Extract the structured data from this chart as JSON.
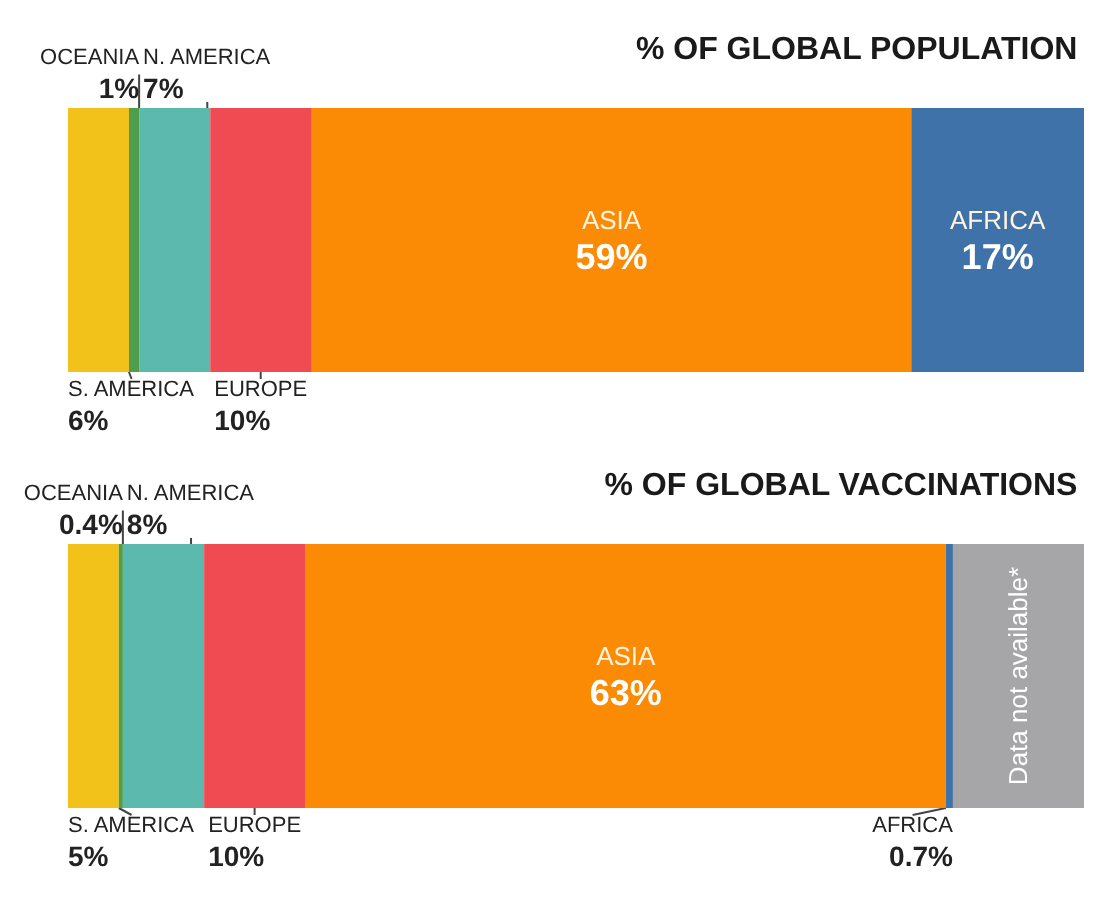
{
  "chart_data": [
    {
      "type": "bar",
      "title": "% OF GLOBAL POPULATION",
      "orientation": "horizontal",
      "stacked": true,
      "categories": [
        null
      ],
      "series": [
        {
          "name": "S. AMERICA",
          "color": "#f2c21b",
          "values": [
            6
          ],
          "value_labels": [
            "6%"
          ]
        },
        {
          "name": "OCEANIA",
          "color": "#4f9e4c",
          "values": [
            1
          ],
          "value_labels": [
            "1%"
          ]
        },
        {
          "name": "N. AMERICA",
          "color": "#5bb9ad",
          "values": [
            7
          ],
          "value_labels": [
            "7%"
          ]
        },
        {
          "name": "EUROPE",
          "color": "#f04a52",
          "values": [
            10
          ],
          "value_labels": [
            "10%"
          ]
        },
        {
          "name": "ASIA",
          "color": "#fb8a05",
          "values": [
            59
          ],
          "value_labels": [
            "59%"
          ]
        },
        {
          "name": "AFRICA",
          "color": "#3e72a8",
          "values": [
            17
          ],
          "value_labels": [
            "17%"
          ]
        }
      ]
    },
    {
      "type": "bar",
      "title": "% OF GLOBAL VACCINATIONS",
      "orientation": "horizontal",
      "stacked": true,
      "categories": [
        null
      ],
      "series": [
        {
          "name": "S. AMERICA",
          "color": "#f2c21b",
          "values": [
            5
          ],
          "value_labels": [
            "5%"
          ]
        },
        {
          "name": "OCEANIA",
          "color": "#4f9e4c",
          "values": [
            0.4
          ],
          "value_labels": [
            "0.4%"
          ]
        },
        {
          "name": "N. AMERICA",
          "color": "#5bb9ad",
          "values": [
            8
          ],
          "value_labels": [
            "8%"
          ]
        },
        {
          "name": "EUROPE",
          "color": "#f04a52",
          "values": [
            10
          ],
          "value_labels": [
            "10%"
          ]
        },
        {
          "name": "ASIA",
          "color": "#fb8a05",
          "values": [
            63
          ],
          "value_labels": [
            "63%"
          ]
        },
        {
          "name": "AFRICA",
          "color": "#3e72a8",
          "values": [
            0.7
          ],
          "value_labels": [
            "0.7%"
          ]
        },
        {
          "name": "Data not available*",
          "color": "#a6a6a8",
          "values": [
            12.9
          ]
        }
      ]
    }
  ]
}
